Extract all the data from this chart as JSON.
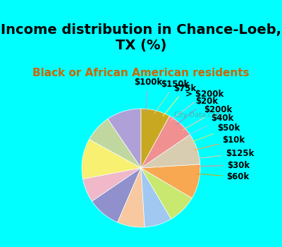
{
  "title": "Income distribution in Chance-Loeb,\nTX (%)",
  "subtitle": "Black or African American residents",
  "background_top": "#00FFFF",
  "background_chart": "#e8f5ee",
  "labels": [
    "$100k",
    "$150k",
    "$75k",
    "> $200k",
    "$20k",
    "$200k",
    "$40k",
    "$50k",
    "$10k",
    "$125k",
    "$30k",
    "$60k"
  ],
  "sizes": [
    9.5,
    7.5,
    11.0,
    6.5,
    9.0,
    7.5,
    7.5,
    8.0,
    9.5,
    8.5,
    7.5,
    8.0
  ],
  "colors": [
    "#b0a0d8",
    "#c0d8a0",
    "#f8f070",
    "#f0b8c8",
    "#9090cc",
    "#f8c8a0",
    "#a0c8f0",
    "#c8e870",
    "#f8a850",
    "#d8cdb0",
    "#f09090",
    "#c8a820"
  ],
  "startangle": 90,
  "title_fontsize": 14,
  "subtitle_fontsize": 11,
  "label_fontsize": 8.5,
  "watermark": "City-Data.com"
}
